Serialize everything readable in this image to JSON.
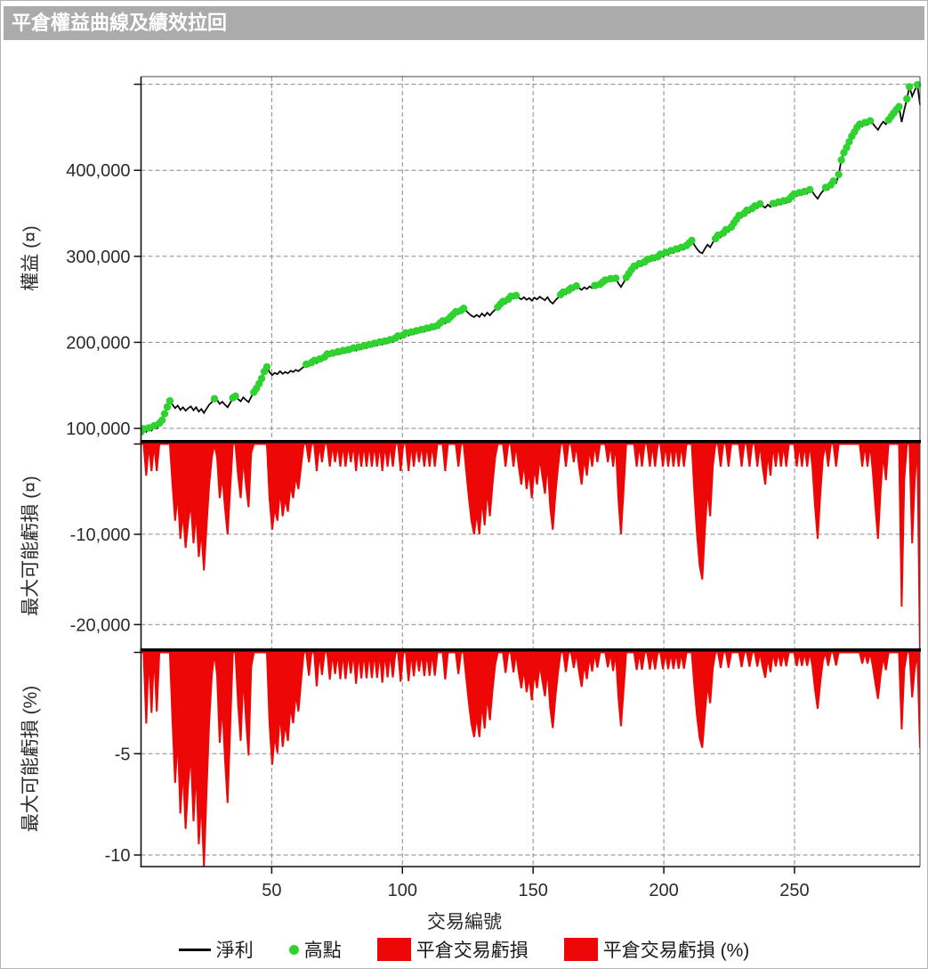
{
  "window": {
    "title": "平倉權益曲線及績效拉回"
  },
  "colors": {
    "net_profit": "#0a0a0a",
    "high_point": "#2fd32f",
    "drawdown": "#ee0707",
    "grid": "#8a8a8a",
    "titlebar_bg": "#ababab",
    "titlebar_text": "#ffffff"
  },
  "legend": {
    "items": [
      {
        "label": "淨利",
        "swatch": "line",
        "color": "#0a0a0a"
      },
      {
        "label": "高點",
        "swatch": "dot",
        "color": "#2fd32f"
      },
      {
        "label": "平倉交易虧損",
        "swatch": "rect",
        "color": "#ee0707"
      },
      {
        "label": "平倉交易虧損 (%)",
        "swatch": "rect",
        "color": "#ee0707"
      }
    ]
  },
  "chart_data": {
    "type": "line",
    "xlabel": "交易編號",
    "n_trades": 298,
    "x_ticks": [
      {
        "v": 50,
        "label": "50"
      },
      {
        "v": 100,
        "label": "100"
      },
      {
        "v": 150,
        "label": "150"
      },
      {
        "v": 200,
        "label": "200"
      },
      {
        "v": 250,
        "label": "250"
      }
    ],
    "panels": [
      {
        "ylabel": "權益 (¤)",
        "series": [
          "淨利",
          "高點"
        ],
        "ylim": [
          86000,
          509000
        ],
        "y_ticks": [
          {
            "v": 500000,
            "label": ""
          },
          {
            "v": 400000,
            "label": "400,000"
          },
          {
            "v": 300000,
            "label": "300,000"
          },
          {
            "v": 200000,
            "label": "200,000"
          },
          {
            "v": 100000,
            "label": "100,000"
          }
        ]
      },
      {
        "ylabel": "最大可能虧損 (¤)",
        "series": [
          "平倉交易虧損"
        ],
        "ylim": [
          -22700,
          0
        ],
        "y_ticks": [
          {
            "v": 0,
            "label": ""
          },
          {
            "v": -10000,
            "label": "-10,000"
          },
          {
            "v": -20000,
            "label": "-20,000"
          }
        ]
      },
      {
        "ylabel": "最大可能虧損 (%)",
        "series": [
          "平倉交易虧損 (%)"
        ],
        "ylim": [
          -10.6,
          0
        ],
        "y_ticks": [
          {
            "v": 0,
            "label": ""
          },
          {
            "v": -5,
            "label": "-5"
          },
          {
            "v": -10,
            "label": "-10"
          }
        ]
      }
    ],
    "equity_note": "淨利 equity per trade number; 高點 = running new highs; drawdown panels are equity minus running maximum (¤ and %)",
    "equity": [
      96000,
      99500,
      96000,
      100500,
      97500,
      103000,
      100000,
      106000,
      109500,
      117000,
      125000,
      132000,
      127500,
      123500,
      126500,
      121500,
      124500,
      120500,
      123500,
      125500,
      121000,
      124500,
      119500,
      122500,
      118000,
      123000,
      127500,
      130500,
      134500,
      133000,
      128500,
      131000,
      127500,
      124500,
      129500,
      135500,
      137500,
      134000,
      131500,
      136000,
      133000,
      130500,
      136500,
      142000,
      146500,
      152000,
      158000,
      166000,
      171500,
      165500,
      162000,
      164500,
      163000,
      166500,
      163500,
      165500,
      164000,
      167000,
      165500,
      168000,
      166500,
      169000,
      171500,
      174500,
      172500,
      176500,
      179000,
      176000,
      180500,
      178500,
      183000,
      186500,
      184000,
      187500,
      185500,
      189000,
      186500,
      190500,
      188000,
      191500,
      189500,
      193500,
      190500,
      194500,
      192000,
      196000,
      193500,
      197500,
      195000,
      199000,
      196500,
      200500,
      197500,
      201500,
      199000,
      203000,
      200500,
      205000,
      207500,
      204500,
      208500,
      211000,
      208000,
      212000,
      209500,
      213500,
      211500,
      215000,
      212500,
      216500,
      214000,
      218000,
      215500,
      219500,
      222500,
      225000,
      222000,
      226500,
      229500,
      232500,
      235500,
      233000,
      237000,
      239500,
      236500,
      233500,
      231000,
      229500,
      232000,
      229500,
      233500,
      230500,
      234500,
      231500,
      235000,
      238000,
      241000,
      244500,
      247500,
      245000,
      250000,
      253500,
      251000,
      254500,
      252000,
      250000,
      252500,
      249500,
      251500,
      248500,
      252000,
      250000,
      253000,
      251000,
      249000,
      252500,
      247500,
      245000,
      249000,
      252000,
      255500,
      258500,
      256000,
      260500,
      263000,
      261000,
      265500,
      263000,
      261000,
      264000,
      262000,
      265000,
      263000,
      266000,
      264000,
      267500,
      270000,
      272500,
      270500,
      274000,
      271500,
      274500,
      268500,
      264500,
      269500,
      275500,
      280000,
      284500,
      288500,
      286000,
      291500,
      289000,
      293500,
      296500,
      294000,
      298000,
      295500,
      299500,
      302500,
      300000,
      304500,
      302000,
      306500,
      304000,
      308500,
      306000,
      310500,
      308000,
      312500,
      315500,
      318500,
      313000,
      308500,
      305000,
      303500,
      309000,
      313500,
      310500,
      316000,
      320500,
      324500,
      322000,
      327000,
      331000,
      328500,
      334000,
      338500,
      343000,
      347500,
      345000,
      350000,
      353500,
      351000,
      355500,
      358500,
      356000,
      361000,
      358500,
      356500,
      360000,
      357500,
      361500,
      359000,
      363000,
      360500,
      364500,
      362000,
      366000,
      369500,
      372500,
      370000,
      374000,
      371500,
      375500,
      373000,
      377500,
      375000,
      370500,
      367000,
      372000,
      376000,
      380000,
      377500,
      383000,
      387500,
      385000,
      395000,
      412000,
      420500,
      426500,
      433000,
      439500,
      444500,
      450000,
      453500,
      451000,
      455500,
      453000,
      457500,
      454500,
      450500,
      447000,
      452500,
      456500,
      453500,
      458500,
      462500,
      466500,
      470500,
      474000,
      456000,
      470000,
      483000,
      497000,
      486000,
      493000,
      499500,
      476000
    ]
  }
}
